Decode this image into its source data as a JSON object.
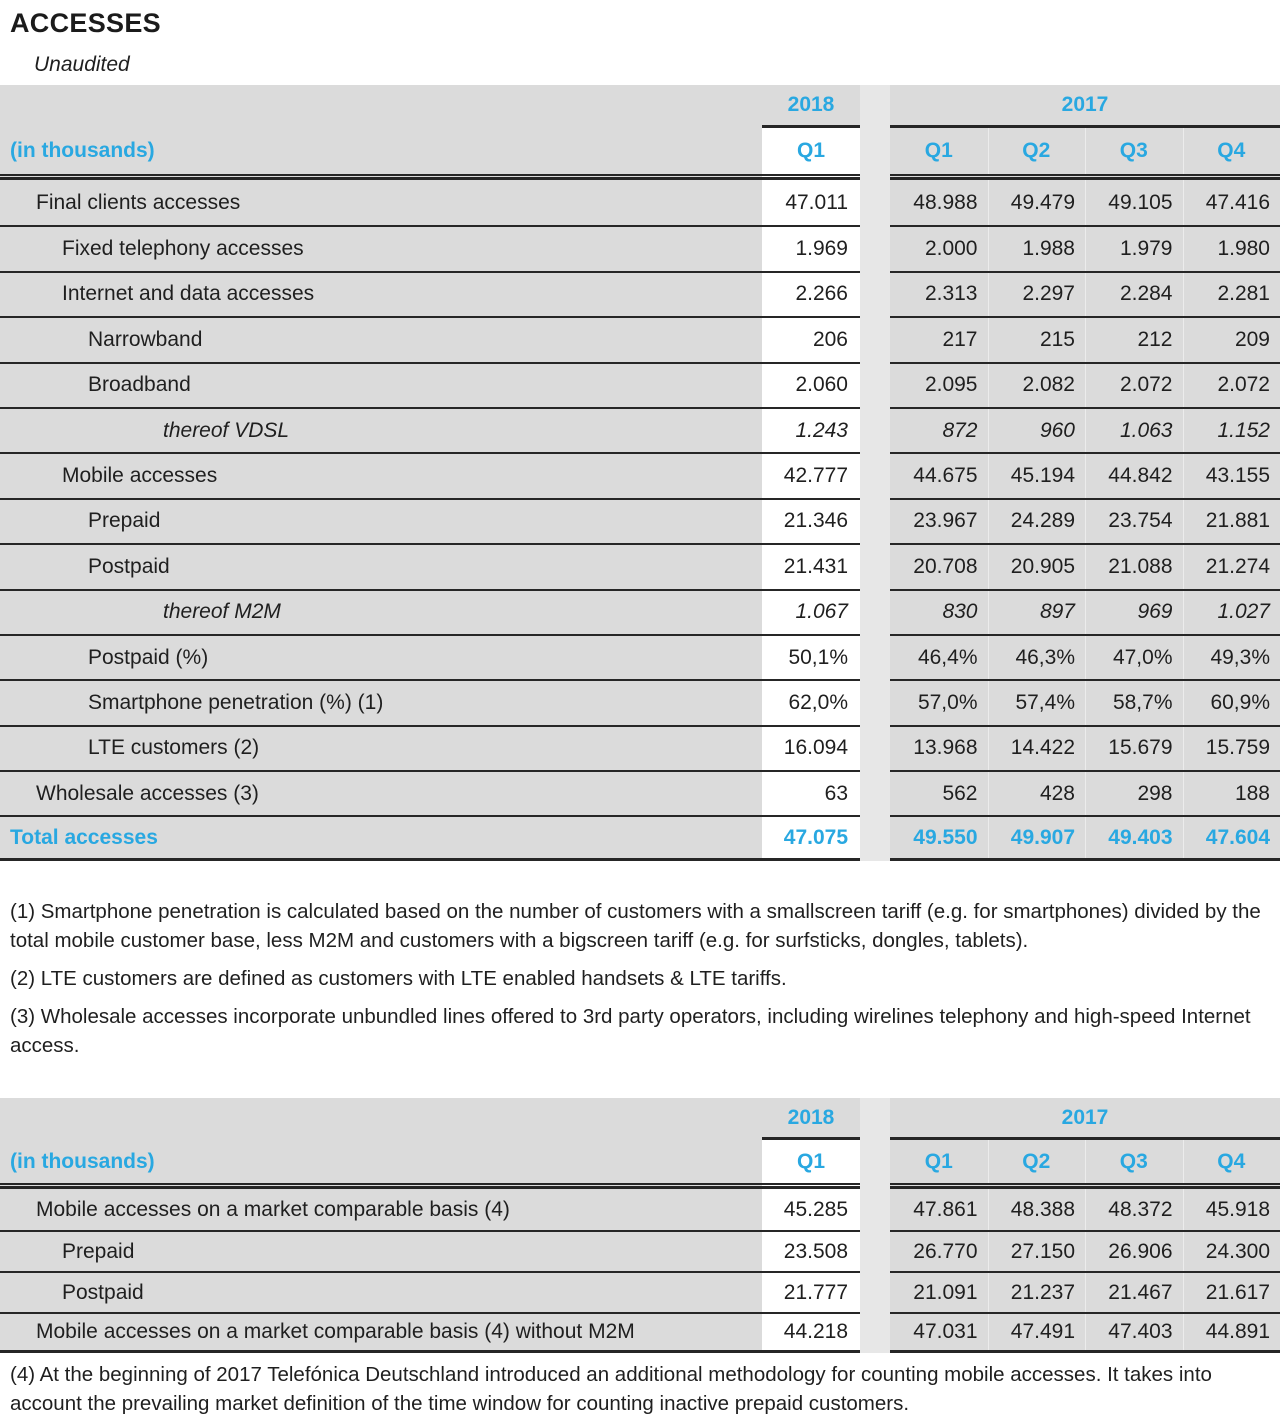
{
  "title": "ACCESSES",
  "subtitle": "Unaudited",
  "colors": {
    "accent_blue": "#29A8E1",
    "band_gray": "#DBDBDB",
    "gap_gray": "#E7E7E7",
    "line_dark": "#262626"
  },
  "header": {
    "unit_label": "(in thousands)",
    "current_year": "2018",
    "prior_year": "2017",
    "current_quarters": [
      "Q1"
    ],
    "prior_quarters": [
      "Q1",
      "Q2",
      "Q3",
      "Q4"
    ]
  },
  "tables": [
    {
      "name": "accesses",
      "rows": [
        {
          "label": "Final clients accesses",
          "indent": 1,
          "style": "normal",
          "q1_2018": "47.011",
          "prior": [
            "48.988",
            "49.479",
            "49.105",
            "47.416"
          ]
        },
        {
          "label": "Fixed telephony accesses",
          "indent": 2,
          "style": "normal",
          "q1_2018": "1.969",
          "prior": [
            "2.000",
            "1.988",
            "1.979",
            "1.980"
          ]
        },
        {
          "label": "Internet and data accesses",
          "indent": 2,
          "style": "normal",
          "q1_2018": "2.266",
          "prior": [
            "2.313",
            "2.297",
            "2.284",
            "2.281"
          ]
        },
        {
          "label": "Narrowband",
          "indent": 3,
          "style": "normal",
          "q1_2018": "206",
          "prior": [
            "217",
            "215",
            "212",
            "209"
          ]
        },
        {
          "label": "Broadband",
          "indent": 3,
          "style": "normal",
          "q1_2018": "2.060",
          "prior": [
            "2.095",
            "2.082",
            "2.072",
            "2.072"
          ]
        },
        {
          "label": "thereof VDSL",
          "indent": 4,
          "style": "italic",
          "q1_2018": "1.243",
          "prior": [
            "872",
            "960",
            "1.063",
            "1.152"
          ]
        },
        {
          "label": "Mobile accesses",
          "indent": 2,
          "style": "normal",
          "q1_2018": "42.777",
          "prior": [
            "44.675",
            "45.194",
            "44.842",
            "43.155"
          ]
        },
        {
          "label": "Prepaid",
          "indent": 3,
          "style": "normal",
          "q1_2018": "21.346",
          "prior": [
            "23.967",
            "24.289",
            "23.754",
            "21.881"
          ]
        },
        {
          "label": "Postpaid",
          "indent": 3,
          "style": "normal",
          "q1_2018": "21.431",
          "prior": [
            "20.708",
            "20.905",
            "21.088",
            "21.274"
          ]
        },
        {
          "label": "thereof M2M",
          "indent": 4,
          "style": "italic",
          "q1_2018": "1.067",
          "prior": [
            "830",
            "897",
            "969",
            "1.027"
          ]
        },
        {
          "label": "Postpaid (%)",
          "indent": 3,
          "style": "normal",
          "q1_2018": "50,1%",
          "prior": [
            "46,4%",
            "46,3%",
            "47,0%",
            "49,3%"
          ]
        },
        {
          "label": "Smartphone penetration (%) (1)",
          "indent": 3,
          "style": "normal",
          "q1_2018": "62,0%",
          "prior": [
            "57,0%",
            "57,4%",
            "58,7%",
            "60,9%"
          ]
        },
        {
          "label": "LTE customers (2)",
          "indent": 3,
          "style": "normal",
          "q1_2018": "16.094",
          "prior": [
            "13.968",
            "14.422",
            "15.679",
            "15.759"
          ]
        },
        {
          "label": "Wholesale accesses (3)",
          "indent": 1,
          "style": "normal",
          "q1_2018": "63",
          "prior": [
            "562",
            "428",
            "298",
            "188"
          ]
        },
        {
          "label": "Total accesses",
          "indent": 0,
          "style": "total",
          "q1_2018": "47.075",
          "prior": [
            "49.550",
            "49.907",
            "49.403",
            "47.604"
          ]
        }
      ]
    },
    {
      "name": "market-comparable-basis",
      "rows": [
        {
          "label": "Mobile accesses on a market comparable basis (4)",
          "indent": 1,
          "style": "normal",
          "q1_2018": "45.285",
          "prior": [
            "47.861",
            "48.388",
            "48.372",
            "45.918"
          ]
        },
        {
          "label": "Prepaid",
          "indent": 2,
          "style": "normal",
          "q1_2018": "23.508",
          "prior": [
            "26.770",
            "27.150",
            "26.906",
            "24.300"
          ]
        },
        {
          "label": "Postpaid",
          "indent": 2,
          "style": "normal",
          "q1_2018": "21.777",
          "prior": [
            "21.091",
            "21.237",
            "21.467",
            "21.617"
          ]
        },
        {
          "label": "Mobile accesses on a market comparable basis (4) without M2M",
          "indent": 1,
          "style": "normal",
          "q1_2018": "44.218",
          "prior": [
            "47.031",
            "47.491",
            "47.403",
            "44.891"
          ]
        }
      ]
    }
  ],
  "footnotes": [
    "(1) Smartphone penetration is calculated based on the number of customers with a smallscreen tariff (e.g. for smartphones) divided by the total mobile customer base, less M2M and customers with a bigscreen tariff (e.g. for surfsticks, dongles, tablets).",
    "(2) LTE customers are defined as customers with LTE enabled handsets & LTE tariffs.",
    "(3) Wholesale accesses incorporate unbundled lines offered to 3rd party operators, including wirelines telephony and high-speed Internet access.",
    "(4) At the beginning of 2017 Telefónica Deutschland introduced an additional methodology for counting mobile accesses. It takes into account the prevailing market definition of the time window for counting inactive prepaid customers."
  ]
}
